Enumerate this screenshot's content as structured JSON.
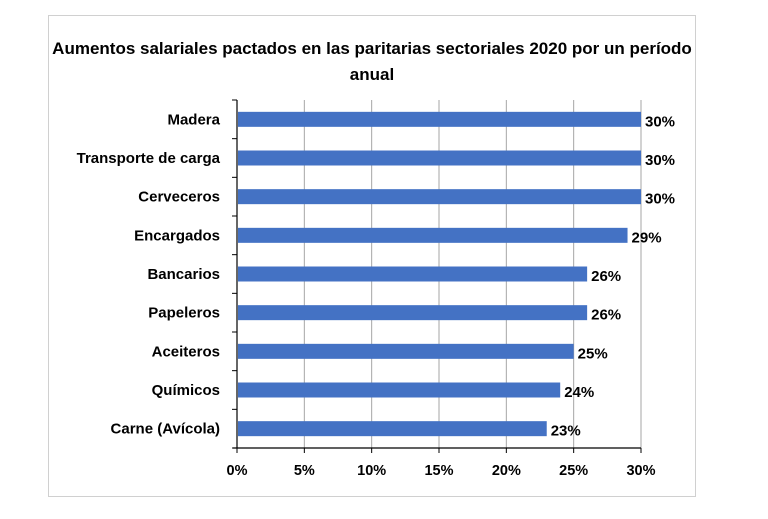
{
  "chart_data": {
    "type": "bar",
    "orientation": "horizontal",
    "title": "Aumentos salariales pactados en las paritarias sectoriales 2020 por un período anual",
    "categories": [
      "Madera",
      "Transporte de carga",
      "Cerveceros",
      "Encargados",
      "Bancarios",
      "Papeleros",
      "Aceiteros",
      "Químicos",
      "Carne (Avícola)"
    ],
    "values": [
      30,
      30,
      30,
      29,
      26,
      26,
      25,
      24,
      23
    ],
    "data_labels": [
      "30%",
      "30%",
      "30%",
      "29%",
      "26%",
      "26%",
      "25%",
      "24%",
      "23%"
    ],
    "xlim": [
      0,
      30
    ],
    "xticks": [
      "0%",
      "5%",
      "10%",
      "15%",
      "20%",
      "25%",
      "30%"
    ],
    "xlabel": "",
    "ylabel": "",
    "grid": "vertical",
    "legend": "none",
    "bar_color": "#4472C4"
  }
}
